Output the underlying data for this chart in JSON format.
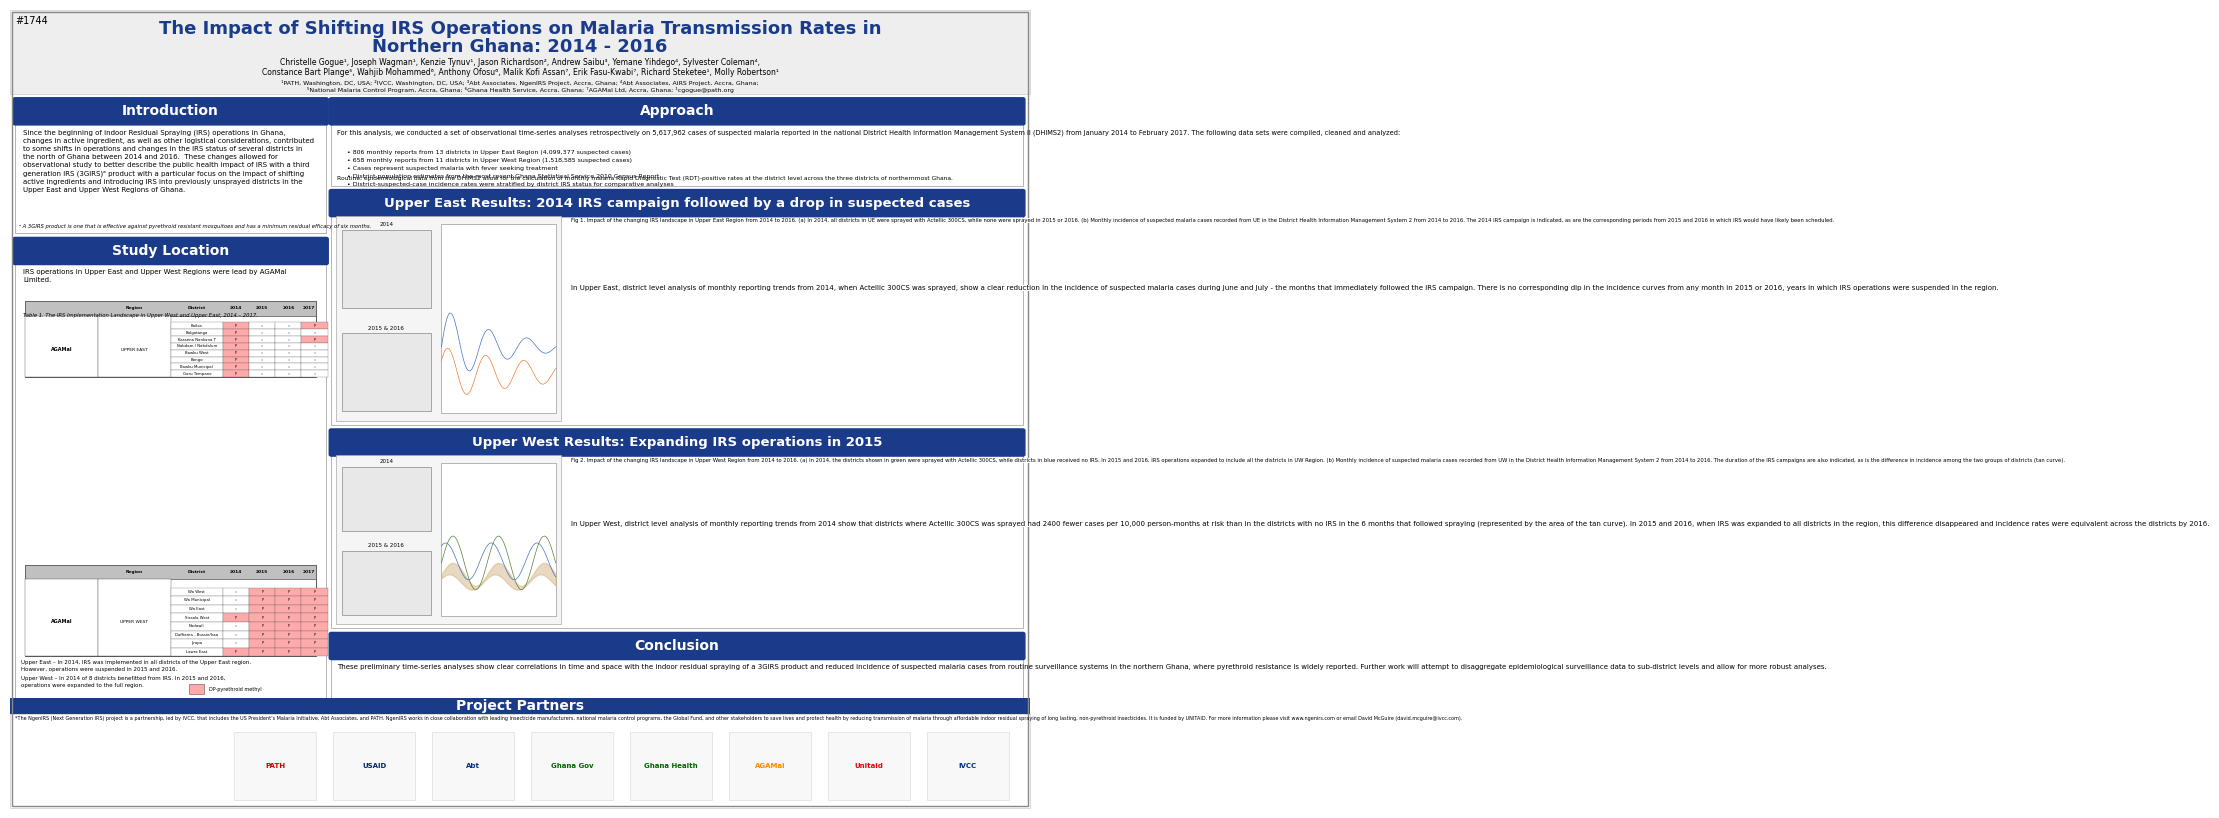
{
  "title_line1": "The Impact of Shifting IRS Operations on Malaria Transmission Rates in",
  "title_line2": "Northern Ghana: 2014 - 2016",
  "title_color": "#1a3a8a",
  "poster_id": "#1744",
  "bg_color": "#ffffff",
  "header_bg": "#f0f0f0",
  "section_header_bg": "#1a3a8a",
  "section_header_color": "#ffffff",
  "section_header_fontsize": 11,
  "authors": "Christelle Gogue¹, Joseph Wagman¹, Kenzie Tynuv¹, Jason Richardson², Andrew Saibu³, Yemane Yihdego⁴, Sylvester Coleman⁴,\nConstance Bart Plange⁵, Wahjib Mohammed⁶, Anthony Ofosu⁶, Malik Kofi Assan⁷, Erik Fasu-Kwabi⁷, Richard Steketee¹, Molly Robertson¹",
  "affiliations": "¹PATH, Washington, DC, USA; ²IVCC, Washington, DC, USA; ³Abt Associates, NgenIRS Project, Accra, Ghana; ⁴Abt Associates, AIRS Project, Accra, Ghana;\n⁵National Malaria Control Program, Accra, Ghana; ⁶Ghana Health Service, Accra, Ghana; ⁷AGAMal Ltd, Accra, Ghana; ¹cgogue@path.org",
  "intro_title": "Introduction",
  "intro_text": "Since the beginning of indoor Residual Spraying (IRS) operations in Ghana, changes in active ingredient, as well as other logistical considerations, contributed to some shifts in operations and changes in the IRS status of several districts in the north of Ghana between 2014 and 2016. These changes allowed for observational study to better describe the public health impact of IRS with a third generation IRS (3GIRS)ᵃ product with a particular focus on the impact of shifting active ingredients and introducing IRS into previously unsprayed districts in the Upper East and Upper West Regions of Ghana.\n\nᵃ A 3GIRS product is one that is effective against pyrethroid resistant mosquitoes and has a minimum residual efficacy of six months.",
  "approach_title": "Approach",
  "approach_text": "For this analysis, we conducted a set of observational time-series analyses retrospectively on 5,617,962 cases of suspected malaria reported in the national District Health Information Management System II (DHIMS2) from January 2014 to February 2017. The following data sets were compiled, cleaned and analyzed:",
  "approach_bullets": [
    "806 monthly reports from 13 districts in Upper East Region (4,099,377 suspected cases)",
    "658 monthly reports from 11 districts in Upper West Region (1,518,585 suspected cases)",
    "Cases represent suspected malaria with fever seeking treatment",
    "District population estimates from the most recent Ghana Statistical Service 2010 Census Report",
    "District-suspected-case incidence rates were stratified by district IRS status for comparative analyses"
  ],
  "approach_footer": "Routine, epidemiological data from the DHIMS2 allow for the calculation of monthly malaria Rapid Diagnostic Test (RDT)-positive rates at the district level across the three districts of northernmost Ghana.",
  "study_title": "Study Location",
  "study_text": "IRS operations in Upper East and Upper West Regions were lead by AGAMal Limited.",
  "study_table_caption": "Table 1. The IRS Implementation Landscape in Upper West and Upper East, 2014 – 2017.",
  "upper_east_title": "Upper East Results: 2014 IRS campaign followed by a drop in suspected cases",
  "upper_east_text": "In Upper East, district level analysis of monthly reporting trends from 2014, when Actellic 300CS was sprayed, show a clear reduction in the incidence of suspected malaria cases during June and July - the months that immediately followed the IRS campaign. There is no corresponding dip in the incidence curves from any month in 2015 or 2016, years in which IRS operations were suspended in the region.",
  "upper_west_title": "Upper West Results: Expanding IRS operations in 2015",
  "upper_west_text": "In Upper West, district level analysis of monthly reporting trends from 2014 show that districts where Actellic 300CS was sprayed had 2400 fewer cases per 10,000 person-months at risk than in the districts with no IRS in the 6 months that followed spraying (represented by the area of the tan curve). In 2015 and 2016, when IRS was expanded to all districts in the region, this difference disappeared and incidence rates were equivalent across the districts by 2016.",
  "conclusion_title": "Conclusion",
  "conclusion_text": "These preliminary time-series analyses show clear correlations in time and space with the indoor residual spraying of a 3GIRS product and reduced incidence of suspected malaria cases from routine surveillance systems in the northern Ghana, where pyrethroid resistance is widely reported. Further work will attempt to disaggregate epidemiological surveillance data to sub-district levels and allow for more robust analyses.",
  "project_partners_title": "Project Partners",
  "footer_text": "*The NgenIRS (Next Generation IRS) project is a partnership, led by IVCC, that includes the US President’s Malaria Initiative, Abt Associates, and PATH. NgenIRS works in close collaboration with leading insecticide manufacturers, national malaria control programs, the Global Fund, and other stakeholders to save lives and protect health by reducing transmission of malaria through affordable indoor residual spraying of long lasting, non-pyrethroid insecticides. It is funded by UNITAID. For more information please visit www.ngenirs.com or email David McGuire (david.mcguire@ivcc.com).",
  "ue_fig_caption": "Fig 1. Impact of the changing IRS landscape in Upper East Region from 2014 to 2016. (a) In 2014, all districts in UE were sprayed with Actellic 300CS, while none were sprayed in 2015 or 2016. (b) Monthly incidence of suspected malaria cases recorded from UE in the District Health Information Management System 2 from 2014 to 2016. The 2014 IRS campaign is indicated, as are the corresponding periods from 2015 and 2016 in which IRS would have likely been scheduled.",
  "uw_fig_caption": "Fig 2. Impact of the changing IRS landscape in Upper West Region from 2014 to 2016. (a) In 2014, the districts shown in green were sprayed with Actellic 300CS, while districts in blue received no IRS. In 2015 and 2016, IRS operations expanded to include all the districts in UW Region. (b) Monthly incidence of suspected malaria cases recorded from UW in the District Health Information Management System 2 from 2014 to 2016. The duration of the IRS campaigns are also indicated, as is the difference in incidence among the two groups of districts (tan curve)."
}
